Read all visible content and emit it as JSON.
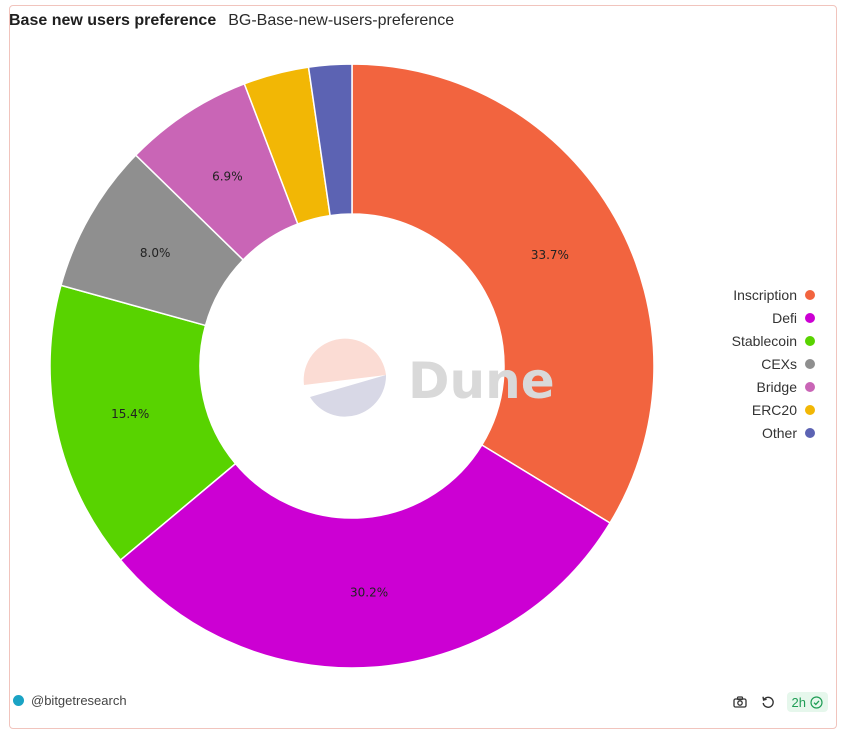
{
  "header": {
    "title": "Base new users preference",
    "subtitle": "BG-Base-new-users-preference"
  },
  "chart_data": {
    "type": "pie",
    "donut": true,
    "slices": [
      {
        "label": "Inscription",
        "value": 33.7,
        "display": "33.7%",
        "color": "#f2643f"
      },
      {
        "label": "Defi",
        "value": 30.2,
        "display": "30.2%",
        "color": "#cc00d3"
      },
      {
        "label": "Stablecoin",
        "value": 15.4,
        "display": "15.4%",
        "color": "#58d300"
      },
      {
        "label": "CEXs",
        "value": 8.0,
        "display": "8.0%",
        "color": "#8f8f8f"
      },
      {
        "label": "Bridge",
        "value": 6.9,
        "display": "6.9%",
        "color": "#c965b6"
      },
      {
        "label": "ERC20",
        "value": 3.5,
        "display": "",
        "color": "#f2b705"
      },
      {
        "label": "Other",
        "value": 2.3,
        "display": "",
        "color": "#5c63b3"
      }
    ],
    "legend_position": "right"
  },
  "watermark": {
    "text": "Dune",
    "colors": [
      "#fbdcd4",
      "#d8d8e6"
    ]
  },
  "footer": {
    "handle": "@bitgetresearch",
    "refresh_badge": "2h",
    "icons": [
      "camera-icon",
      "refresh-icon",
      "check-circle-icon"
    ]
  }
}
